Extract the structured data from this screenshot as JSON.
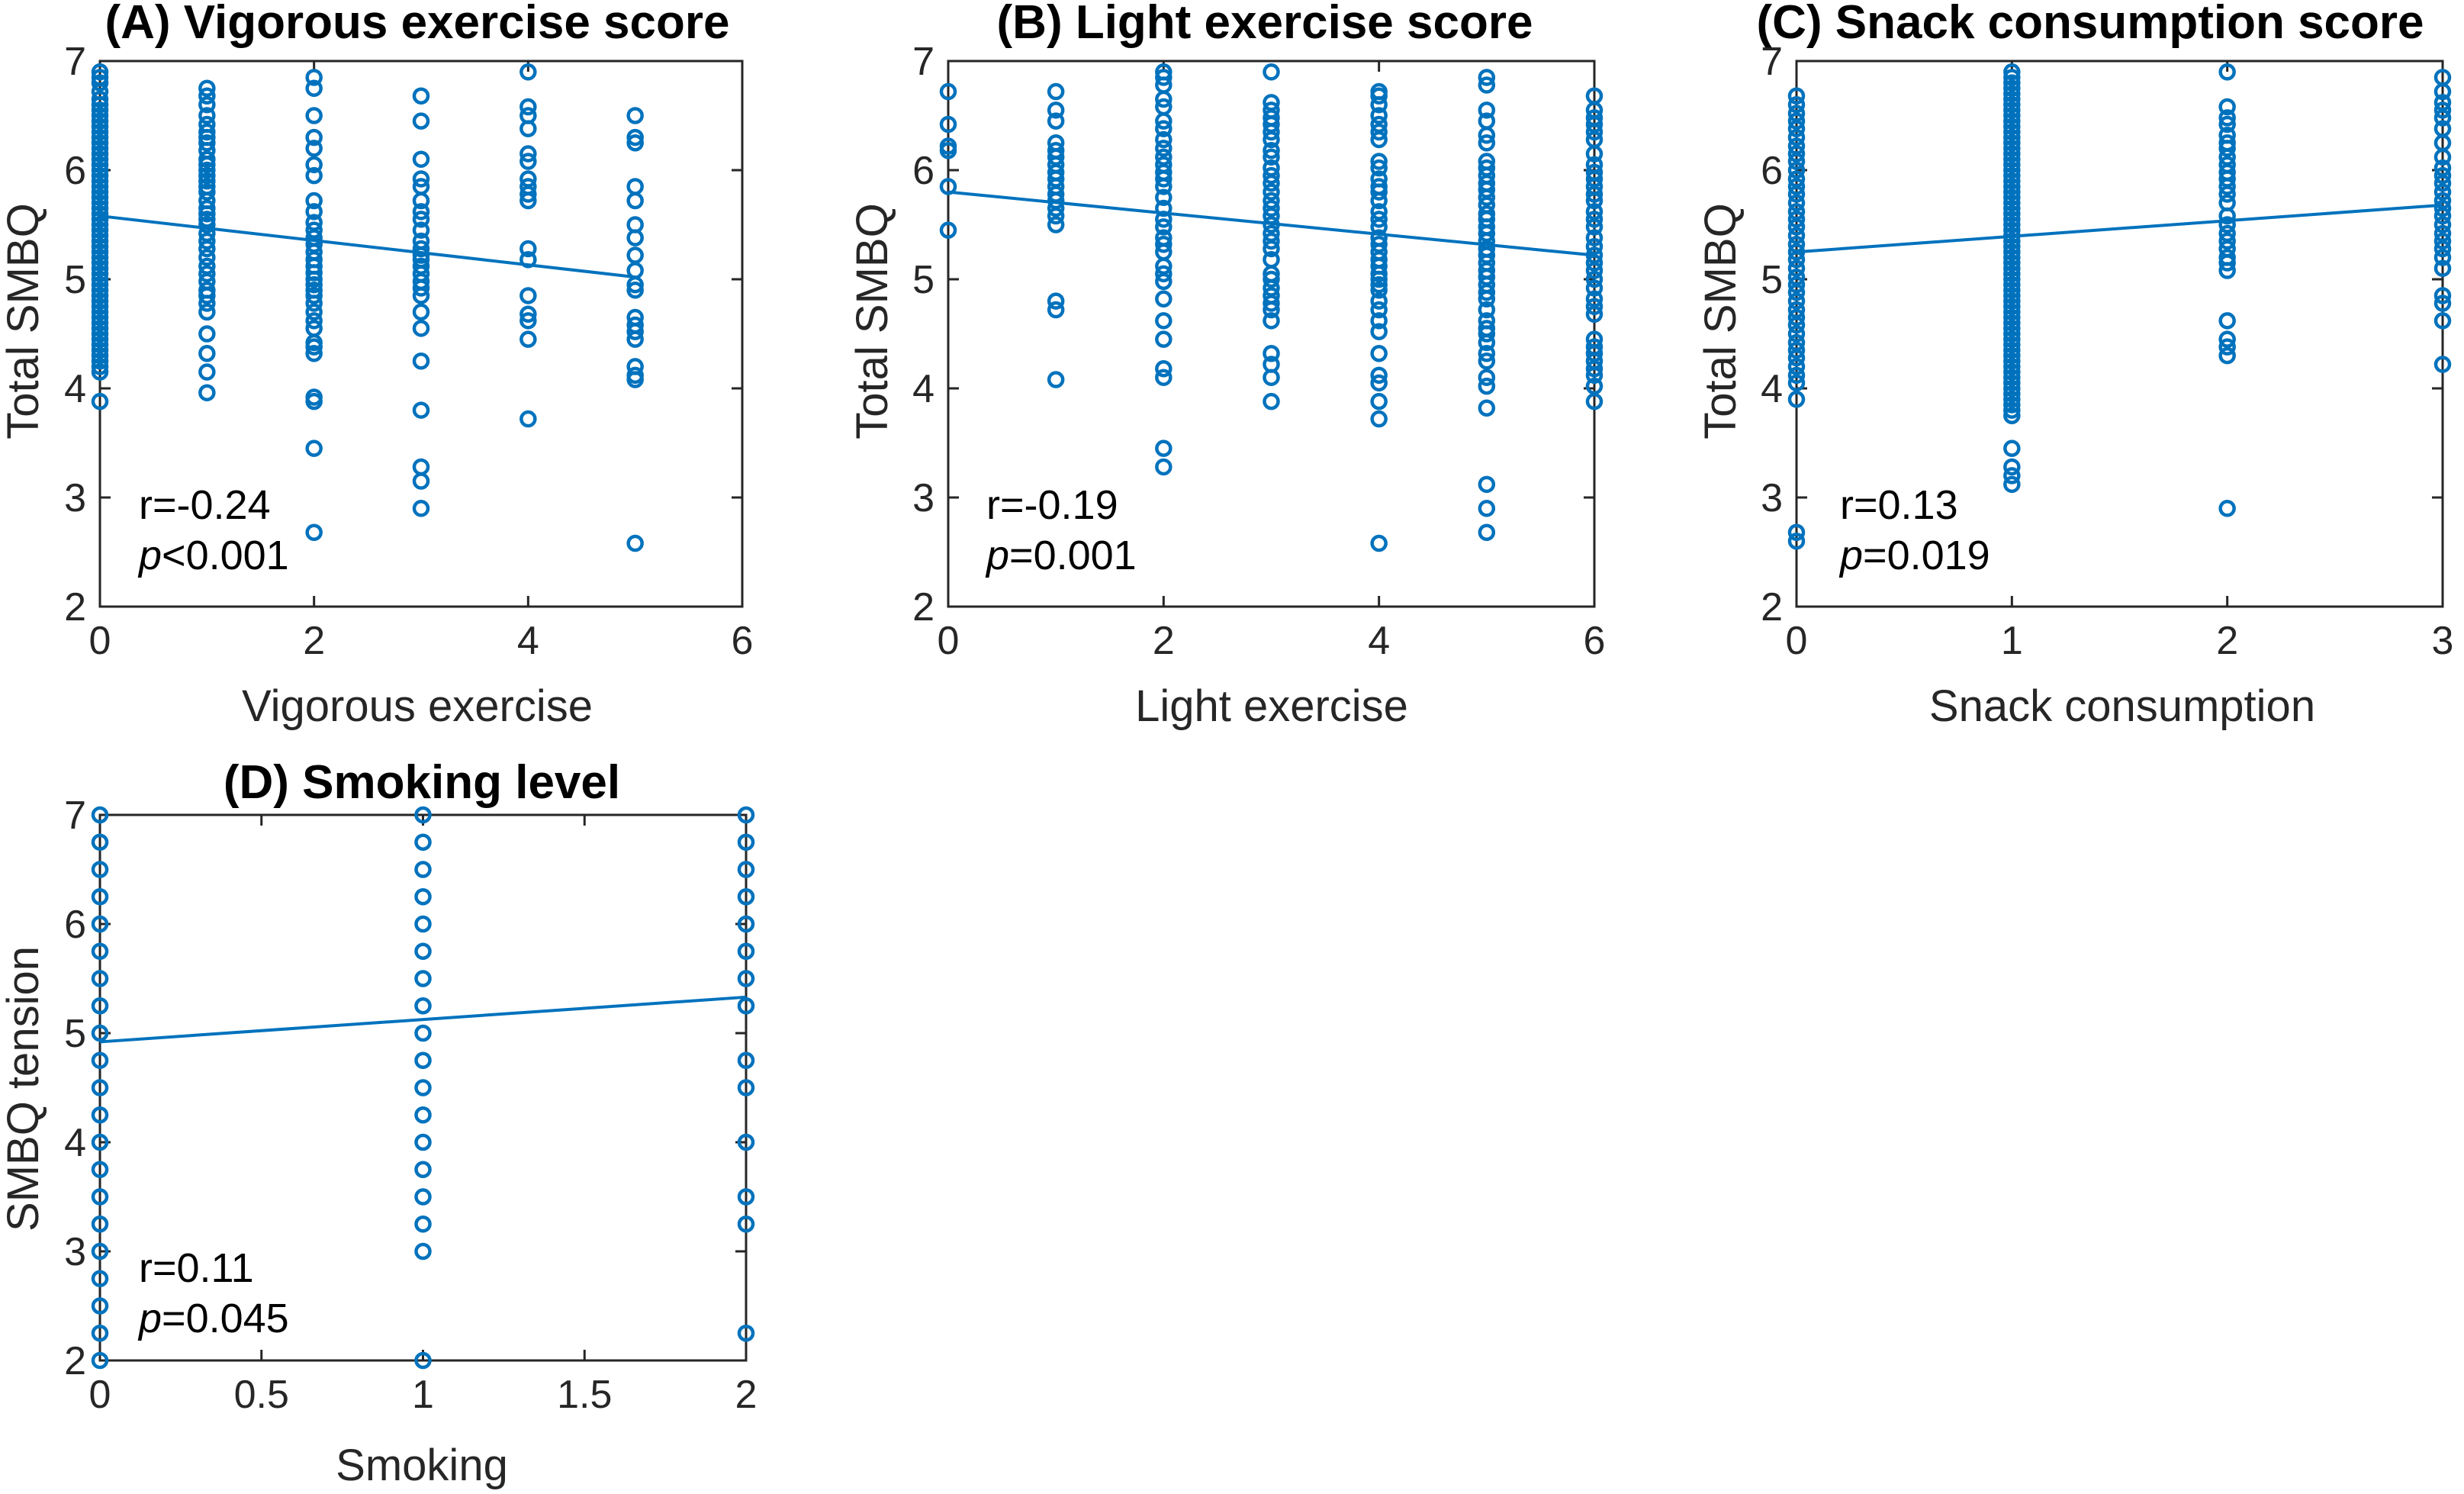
{
  "colors": {
    "series": "#0072BD",
    "axis": "#262626"
  },
  "chart_data": [
    {
      "type": "scatter",
      "id": "A",
      "title": "(A) Vigorous exercise score",
      "xlabel": "Vigorous exercise",
      "ylabel": "Total SMBQ",
      "xlim": [
        0,
        6
      ],
      "ylim": [
        2,
        7
      ],
      "xticks": [
        "0",
        "2",
        "4",
        "6"
      ],
      "yticks": [
        "2",
        "3",
        "4",
        "5",
        "6",
        "7"
      ],
      "fit_line": {
        "x": [
          0,
          5
        ],
        "y": [
          5.58,
          5.02
        ]
      },
      "annotation": {
        "r": "r=-0.24",
        "p_symbol": "p",
        "p_rest": "<0.001"
      },
      "series": [
        {
          "x": 0,
          "y": [
            6.9,
            6.85,
            6.8,
            6.72,
            6.65,
            6.6,
            6.55,
            6.5,
            6.45,
            6.4,
            6.35,
            6.3,
            6.25,
            6.2,
            6.15,
            6.1,
            6.05,
            6.0,
            5.95,
            5.9,
            5.85,
            5.8,
            5.75,
            5.7,
            5.65,
            5.6,
            5.55,
            5.5,
            5.45,
            5.4,
            5.35,
            5.3,
            5.25,
            5.2,
            5.15,
            5.1,
            5.05,
            5.0,
            4.95,
            4.9,
            4.85,
            4.8,
            4.75,
            4.7,
            4.65,
            4.6,
            4.55,
            4.5,
            4.45,
            4.4,
            4.35,
            4.3,
            4.25,
            4.2,
            4.15,
            3.88
          ]
        },
        {
          "x": 1,
          "y": [
            6.75,
            6.68,
            6.6,
            6.5,
            6.42,
            6.35,
            6.3,
            6.25,
            6.18,
            6.1,
            6.05,
            6.0,
            5.95,
            5.9,
            5.85,
            5.8,
            5.72,
            5.65,
            5.6,
            5.55,
            5.5,
            5.42,
            5.35,
            5.28,
            5.2,
            5.12,
            5.05,
            4.98,
            4.9,
            4.85,
            4.78,
            4.7,
            4.5,
            4.32,
            4.15,
            3.96
          ]
        },
        {
          "x": 2,
          "y": [
            6.85,
            6.75,
            6.5,
            6.3,
            6.2,
            6.05,
            5.95,
            5.72,
            5.62,
            5.52,
            5.45,
            5.38,
            5.32,
            5.25,
            5.18,
            5.12,
            5.06,
            5.0,
            4.95,
            4.9,
            4.85,
            4.78,
            4.7,
            4.62,
            4.55,
            4.42,
            4.38,
            4.32,
            3.92,
            3.88,
            3.45,
            2.68
          ]
        },
        {
          "x": 3,
          "y": [
            6.68,
            6.45,
            6.1,
            5.92,
            5.85,
            5.72,
            5.62,
            5.55,
            5.45,
            5.35,
            5.28,
            5.22,
            5.18,
            5.12,
            5.05,
            4.98,
            4.92,
            4.85,
            4.7,
            4.55,
            4.25,
            3.8,
            3.28,
            3.15,
            2.9
          ]
        },
        {
          "x": 4,
          "y": [
            6.9,
            6.58,
            6.5,
            6.38,
            6.15,
            6.08,
            5.92,
            5.85,
            5.78,
            5.72,
            5.28,
            5.18,
            4.85,
            4.68,
            4.62,
            4.45,
            3.72
          ]
        },
        {
          "x": 5,
          "y": [
            6.5,
            6.3,
            6.25,
            5.85,
            5.72,
            5.5,
            5.38,
            5.22,
            5.08,
            4.95,
            4.9,
            4.65,
            4.58,
            4.52,
            4.45,
            4.2,
            4.12,
            4.08,
            2.58
          ]
        }
      ]
    },
    {
      "type": "scatter",
      "id": "B",
      "title": "(B) Light exercise score",
      "xlabel": "Light exercise",
      "ylabel": "Total SMBQ",
      "xlim": [
        0,
        6
      ],
      "ylim": [
        2,
        7
      ],
      "xticks": [
        "0",
        "2",
        "4",
        "6"
      ],
      "yticks": [
        "2",
        "3",
        "4",
        "5",
        "6",
        "7"
      ],
      "fit_line": {
        "x": [
          0,
          6
        ],
        "y": [
          5.8,
          5.22
        ]
      },
      "annotation": {
        "r": "r=-0.19",
        "p_symbol": "p",
        "p_rest": "=0.001"
      },
      "series": [
        {
          "x": 0,
          "y": [
            6.72,
            6.42,
            6.22,
            6.18,
            5.85,
            5.45
          ]
        },
        {
          "x": 1,
          "y": [
            6.72,
            6.55,
            6.45,
            6.25,
            6.18,
            6.12,
            6.05,
            5.98,
            5.92,
            5.85,
            5.78,
            5.72,
            5.65,
            5.58,
            5.5,
            4.8,
            4.72,
            4.08
          ]
        },
        {
          "x": 2,
          "y": [
            6.9,
            6.85,
            6.78,
            6.65,
            6.58,
            6.45,
            6.38,
            6.28,
            6.2,
            6.12,
            6.05,
            5.98,
            5.92,
            5.85,
            5.75,
            5.65,
            5.55,
            5.48,
            5.38,
            5.32,
            5.25,
            5.12,
            5.05,
            4.98,
            4.82,
            4.62,
            4.45,
            4.18,
            4.1,
            3.45,
            3.28
          ]
        },
        {
          "x": 3,
          "y": [
            6.9,
            6.62,
            6.55,
            6.48,
            6.42,
            6.35,
            6.28,
            6.18,
            6.12,
            6.02,
            5.95,
            5.88,
            5.8,
            5.72,
            5.65,
            5.58,
            5.5,
            5.42,
            5.35,
            5.28,
            5.18,
            5.05,
            5.0,
            4.92,
            4.85,
            4.78,
            4.72,
            4.62,
            4.32,
            4.22,
            4.1,
            3.88
          ]
        },
        {
          "x": 4,
          "y": [
            6.72,
            6.68,
            6.6,
            6.5,
            6.42,
            6.35,
            6.28,
            6.08,
            6.02,
            5.92,
            5.85,
            5.8,
            5.72,
            5.62,
            5.55,
            5.48,
            5.38,
            5.32,
            5.25,
            5.18,
            5.12,
            5.05,
            5.0,
            4.95,
            4.9,
            4.8,
            4.72,
            4.62,
            4.52,
            4.32,
            4.12,
            4.05,
            3.88,
            3.72,
            2.58
          ]
        },
        {
          "x": 5,
          "y": [
            6.85,
            6.78,
            6.55,
            6.45,
            6.32,
            6.25,
            6.08,
            6.02,
            5.95,
            5.88,
            5.82,
            5.75,
            5.68,
            5.6,
            5.55,
            5.48,
            5.42,
            5.35,
            5.28,
            5.22,
            5.15,
            5.08,
            5.02,
            4.95,
            4.88,
            4.82,
            4.72,
            4.62,
            4.55,
            4.5,
            4.42,
            4.32,
            4.25,
            4.1,
            4.02,
            3.82,
            3.12,
            2.9,
            2.68
          ]
        },
        {
          "x": 6,
          "y": [
            6.68,
            6.55,
            6.48,
            6.42,
            6.35,
            6.28,
            6.15,
            6.05,
            5.98,
            5.92,
            5.85,
            5.78,
            5.72,
            5.62,
            5.55,
            5.48,
            5.38,
            5.3,
            5.22,
            5.15,
            5.08,
            5.0,
            4.92,
            4.82,
            4.75,
            4.68,
            4.45,
            4.38,
            4.32,
            4.25,
            4.18,
            4.12,
            4.02,
            3.88
          ]
        }
      ]
    },
    {
      "type": "scatter",
      "id": "C",
      "title": "(C) Snack consumption score",
      "xlabel": "Snack consumption",
      "ylabel": "Total SMBQ",
      "xlim": [
        0,
        3
      ],
      "ylim": [
        2,
        7
      ],
      "xticks": [
        "0",
        "1",
        "2",
        "3"
      ],
      "yticks": [
        "2",
        "3",
        "4",
        "5",
        "6",
        "7"
      ],
      "fit_line": {
        "x": [
          0,
          3
        ],
        "y": [
          5.25,
          5.68
        ]
      },
      "annotation": {
        "r": "r=0.13",
        "p_symbol": "p",
        "p_rest": "=0.019"
      },
      "series": [
        {
          "x": 0,
          "y": [
            6.68,
            6.6,
            6.52,
            6.45,
            6.38,
            6.3,
            6.22,
            6.15,
            6.08,
            6.0,
            5.92,
            5.85,
            5.78,
            5.7,
            5.62,
            5.55,
            5.48,
            5.4,
            5.32,
            5.25,
            5.18,
            5.1,
            5.02,
            4.95,
            4.88,
            4.8,
            4.72,
            4.65,
            4.58,
            4.5,
            4.42,
            4.35,
            4.28,
            4.2,
            4.12,
            4.05,
            3.9,
            2.68,
            2.6
          ]
        },
        {
          "x": 1,
          "y": [
            6.9,
            6.85,
            6.8,
            6.75,
            6.7,
            6.65,
            6.6,
            6.55,
            6.5,
            6.45,
            6.4,
            6.35,
            6.3,
            6.25,
            6.2,
            6.15,
            6.1,
            6.05,
            6.0,
            5.95,
            5.9,
            5.85,
            5.8,
            5.75,
            5.7,
            5.65,
            5.6,
            5.55,
            5.5,
            5.45,
            5.4,
            5.35,
            5.3,
            5.25,
            5.2,
            5.15,
            5.1,
            5.05,
            5.0,
            4.95,
            4.9,
            4.85,
            4.8,
            4.75,
            4.7,
            4.65,
            4.6,
            4.55,
            4.5,
            4.45,
            4.4,
            4.35,
            4.3,
            4.25,
            4.2,
            4.15,
            4.1,
            4.05,
            4.0,
            3.95,
            3.9,
            3.85,
            3.8,
            3.75,
            3.45,
            3.28,
            3.2,
            3.12
          ]
        },
        {
          "x": 2,
          "y": [
            6.9,
            6.58,
            6.48,
            6.42,
            6.32,
            6.25,
            6.2,
            6.12,
            6.05,
            5.98,
            5.92,
            5.85,
            5.78,
            5.7,
            5.58,
            5.5,
            5.42,
            5.35,
            5.28,
            5.2,
            5.15,
            5.08,
            4.62,
            4.45,
            4.38,
            4.3,
            2.9
          ]
        },
        {
          "x": 3,
          "y": [
            6.85,
            6.72,
            6.62,
            6.55,
            6.48,
            6.38,
            6.25,
            6.12,
            6.02,
            5.95,
            5.88,
            5.8,
            5.72,
            5.65,
            5.58,
            5.5,
            5.42,
            5.35,
            5.28,
            5.2,
            5.1,
            4.85,
            4.78,
            4.62,
            4.22
          ]
        }
      ]
    },
    {
      "type": "scatter",
      "id": "D",
      "title": "(D) Smoking level",
      "xlabel": "Smoking",
      "ylabel": "SMBQ tension",
      "xlim": [
        0,
        2
      ],
      "ylim": [
        2,
        7
      ],
      "xticks": [
        "0",
        "0.5",
        "1",
        "1.5",
        "2"
      ],
      "yticks": [
        "2",
        "3",
        "4",
        "5",
        "6",
        "7"
      ],
      "fit_line": {
        "x": [
          0,
          2
        ],
        "y": [
          4.92,
          5.33
        ]
      },
      "annotation": {
        "r": "r=0.11",
        "p_symbol": "p",
        "p_rest": "=0.045"
      },
      "series": [
        {
          "x": 0,
          "y": [
            7.0,
            6.75,
            6.5,
            6.25,
            6.0,
            5.75,
            5.5,
            5.25,
            5.0,
            4.75,
            4.5,
            4.25,
            4.0,
            3.75,
            3.5,
            3.25,
            3.0,
            2.75,
            2.5,
            2.25,
            2.0
          ]
        },
        {
          "x": 1,
          "y": [
            7.0,
            6.75,
            6.5,
            6.25,
            6.0,
            5.75,
            5.5,
            5.25,
            5.0,
            4.75,
            4.5,
            4.25,
            4.0,
            3.75,
            3.5,
            3.25,
            3.0,
            2.0
          ]
        },
        {
          "x": 2,
          "y": [
            7.0,
            6.75,
            6.5,
            6.25,
            6.0,
            5.75,
            5.5,
            5.25,
            4.75,
            4.5,
            4.0,
            3.5,
            3.25,
            2.25
          ]
        }
      ]
    }
  ]
}
